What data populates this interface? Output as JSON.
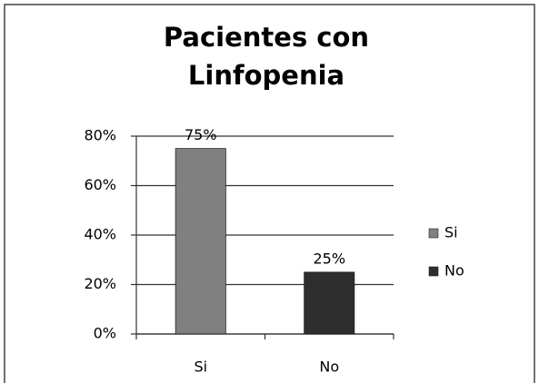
{
  "chart_data": {
    "type": "bar",
    "title": "Pacientes con Linfopenia",
    "categories": [
      "Si",
      "No"
    ],
    "values": [
      75,
      25
    ],
    "value_labels": [
      "75%",
      "25%"
    ],
    "colors": [
      "#808080",
      "#2e2e2e"
    ],
    "ylim": [
      0,
      80
    ],
    "yticks": [
      {
        "value": 0,
        "label": "0%"
      },
      {
        "value": 20,
        "label": "20%"
      },
      {
        "value": 40,
        "label": "40%"
      },
      {
        "value": 60,
        "label": "60%"
      },
      {
        "value": 80,
        "label": "80%"
      }
    ],
    "grid": true,
    "legend": "right"
  }
}
